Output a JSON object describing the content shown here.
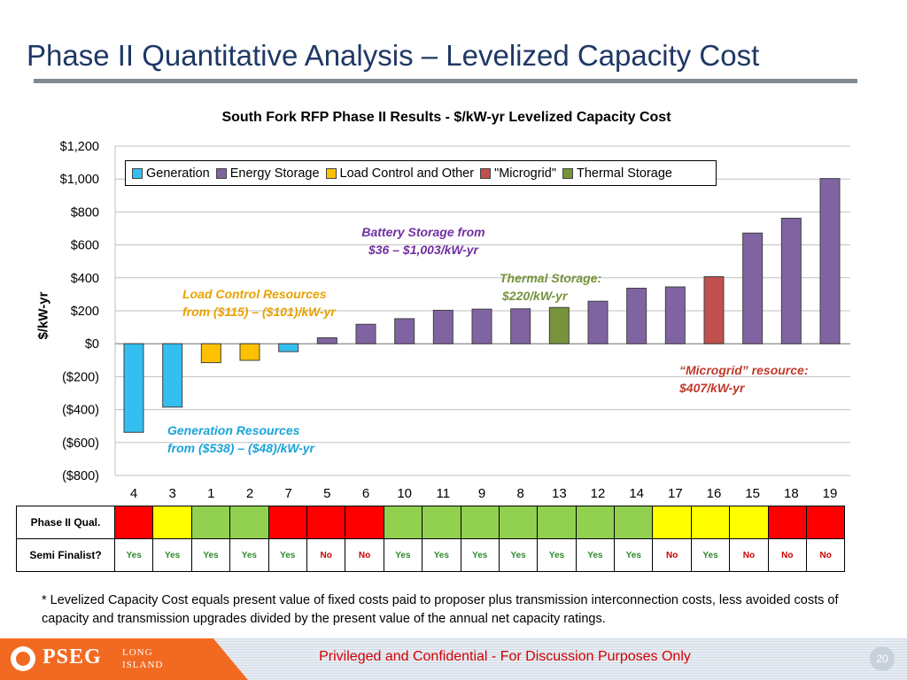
{
  "slide": {
    "title": "Phase II Quantitative Analysis – Levelized Capacity Cost",
    "footnote": "* Levelized Capacity Cost equals present value of fixed costs paid to proposer plus transmission interconnection costs, less avoided costs of capacity and transmission upgrades divided by the present value of the annual net capacity ratings.",
    "confidential": "Privileged and Confidential - For Discussion Purposes Only",
    "page_number": "20",
    "logo": {
      "brand": "PSEG",
      "line1": "LONG",
      "line2": "ISLAND"
    }
  },
  "chart_data": {
    "type": "bar",
    "title": "South Fork RFP Phase II Results - $/kW-yr Levelized Capacity Cost",
    "xlabel": "",
    "ylabel": "$/kW-yr",
    "ylim": [
      -800,
      1200
    ],
    "yticks": [
      1200,
      1000,
      800,
      600,
      400,
      200,
      0,
      -200,
      -400,
      -600,
      -800
    ],
    "ytick_labels": [
      "$1,200",
      "$1,000",
      "$800",
      "$600",
      "$400",
      "$200",
      "$0",
      "($200)",
      "($400)",
      "($600)",
      "($800)"
    ],
    "categories": [
      "4",
      "3",
      "1",
      "2",
      "7",
      "5",
      "6",
      "10",
      "11",
      "9",
      "8",
      "13",
      "12",
      "14",
      "17",
      "16",
      "15",
      "18",
      "19"
    ],
    "values": [
      -538,
      -385,
      -115,
      -101,
      -48,
      36,
      118,
      152,
      203,
      210,
      212,
      220,
      258,
      337,
      345,
      407,
      672,
      762,
      1003
    ],
    "bar_types": [
      "Generation",
      "Generation",
      "Load Control and Other",
      "Load Control and Other",
      "Generation",
      "Energy Storage",
      "Energy Storage",
      "Energy Storage",
      "Energy Storage",
      "Energy Storage",
      "Energy Storage",
      "Thermal Storage",
      "Energy Storage",
      "Energy Storage",
      "Energy Storage",
      "\"Microgrid\"",
      "Energy Storage",
      "Energy Storage",
      "Energy Storage"
    ],
    "legend": [
      {
        "label": "Generation",
        "color": "#33bff0"
      },
      {
        "label": "Energy Storage",
        "color": "#8064a2"
      },
      {
        "label": "Load Control and Other",
        "color": "#ffc000"
      },
      {
        "label": "\"Microgrid\"",
        "color": "#c0504d"
      },
      {
        "label": "Thermal Storage",
        "color": "#77933c"
      }
    ],
    "grid": true,
    "annotations": {
      "battery": [
        "Battery Storage from",
        "$36 – $1,003/kW-yr"
      ],
      "thermal": [
        "Thermal Storage:",
        "$220/kW-yr"
      ],
      "load": [
        "Load Control Resources",
        "from ($115) – ($101)/kW-yr"
      ],
      "microgrid": [
        "“Microgrid” resource:",
        "$407/kW-yr"
      ],
      "generation": [
        "Generation Resources",
        "from ($538) – ($48)/kW-yr"
      ]
    }
  },
  "qual_table": {
    "row1_label": "Phase II Qual.",
    "row2_label": "Semi Finalist?",
    "qual_status": [
      "red",
      "yellow",
      "green",
      "green",
      "red",
      "red",
      "red",
      "green",
      "green",
      "green",
      "green",
      "green",
      "green",
      "green",
      "yellow",
      "yellow",
      "yellow",
      "red",
      "red"
    ],
    "semi_finalist": [
      "Yes",
      "Yes",
      "Yes",
      "Yes",
      "Yes",
      "No",
      "No",
      "Yes",
      "Yes",
      "Yes",
      "Yes",
      "Yes",
      "Yes",
      "Yes",
      "No",
      "Yes",
      "No",
      "No",
      "No"
    ],
    "status_colors": {
      "red": "#ff0000",
      "yellow": "#ffff00",
      "green": "#92d050"
    }
  }
}
